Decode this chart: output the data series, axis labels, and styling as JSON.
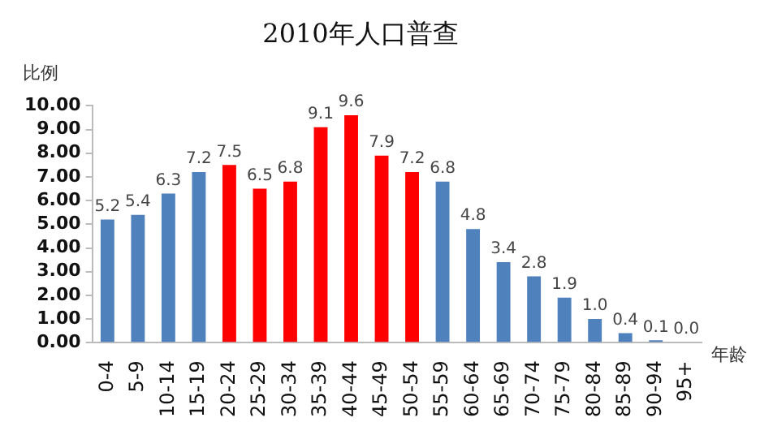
{
  "chart_data": {
    "type": "bar",
    "title": "2010年人口普查",
    "ylabel": "比例",
    "xlabel": "年龄",
    "categories": [
      "0-4",
      "5-9",
      "10-14",
      "15-19",
      "20-24",
      "25-29",
      "30-34",
      "35-39",
      "40-44",
      "45-49",
      "50-54",
      "55-59",
      "60-64",
      "65-69",
      "70-74",
      "75-79",
      "80-84",
      "85-89",
      "90-94",
      "95+"
    ],
    "values": [
      5.2,
      5.4,
      6.3,
      7.2,
      7.5,
      6.5,
      6.8,
      9.1,
      9.6,
      7.9,
      7.2,
      6.8,
      4.8,
      3.4,
      2.8,
      1.9,
      1.0,
      0.4,
      0.1,
      0.0
    ],
    "colors": [
      "#4f81bd",
      "#4f81bd",
      "#4f81bd",
      "#4f81bd",
      "#ff0000",
      "#ff0000",
      "#ff0000",
      "#ff0000",
      "#ff0000",
      "#ff0000",
      "#ff0000",
      "#4f81bd",
      "#4f81bd",
      "#4f81bd",
      "#4f81bd",
      "#4f81bd",
      "#4f81bd",
      "#4f81bd",
      "#4f81bd",
      "#4f81bd"
    ],
    "ylim": [
      0,
      10
    ],
    "yticks": [
      {
        "value": 0,
        "label": "0.00"
      },
      {
        "value": 1,
        "label": "1.00"
      },
      {
        "value": 2,
        "label": "2.00"
      },
      {
        "value": 3,
        "label": "3.00"
      },
      {
        "value": 4,
        "label": "4.00"
      },
      {
        "value": 5,
        "label": "5.00"
      },
      {
        "value": 6,
        "label": "6.00"
      },
      {
        "value": 7,
        "label": "7.00"
      },
      {
        "value": 8,
        "label": "8.00"
      },
      {
        "value": 9,
        "label": "9.00"
      },
      {
        "value": 10,
        "label": "10.00"
      }
    ],
    "value_labels": [
      "5.2",
      "5.4",
      "6.3",
      "7.2",
      "7.5",
      "6.5",
      "6.8",
      "9.1",
      "9.6",
      "7.9",
      "7.2",
      "6.8",
      "4.8",
      "3.4",
      "2.8",
      "1.9",
      "1.0",
      "0.4",
      "0.1",
      "0.0"
    ],
    "grid": false,
    "legend": false
  }
}
